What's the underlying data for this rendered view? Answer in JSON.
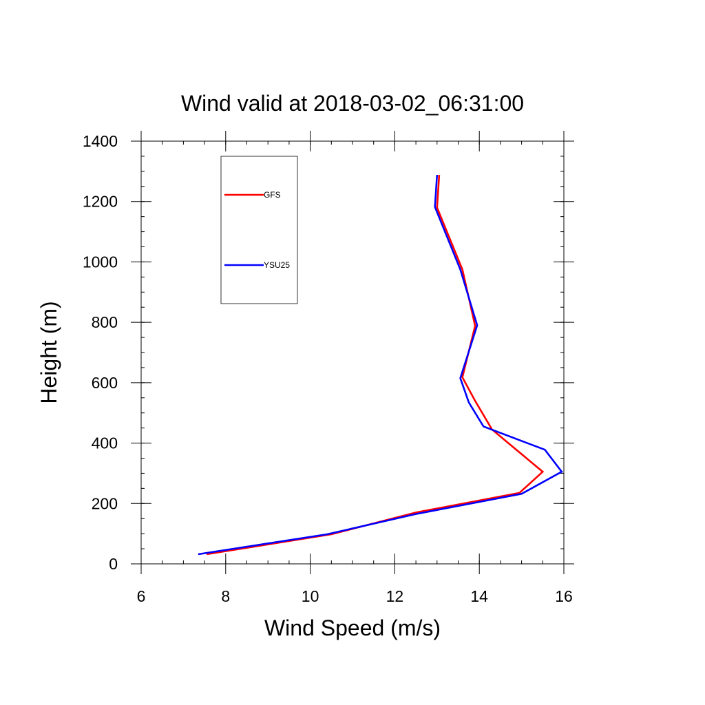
{
  "chart_data": {
    "type": "line",
    "title": "Wind valid at 2018-03-02_06:31:00",
    "xlabel": "Wind Speed (m/s)",
    "ylabel": "Height (m)",
    "xlim": [
      6,
      16
    ],
    "ylim": [
      0,
      1400
    ],
    "xticks": [
      6,
      8,
      10,
      12,
      14,
      16
    ],
    "yticks": [
      0,
      200,
      400,
      600,
      800,
      1000,
      1200,
      1400
    ],
    "grid": false,
    "legend_placement": "top-left",
    "series": [
      {
        "name": "GFS",
        "color": "#ff0000",
        "points": [
          [
            7.55,
            32
          ],
          [
            10.5,
            98
          ],
          [
            12.5,
            170
          ],
          [
            14.95,
            235
          ],
          [
            15.5,
            305
          ],
          [
            14.3,
            445
          ],
          [
            13.9,
            540
          ],
          [
            13.6,
            618
          ],
          [
            13.9,
            788
          ],
          [
            13.6,
            975
          ],
          [
            13.0,
            1180
          ],
          [
            13.05,
            1288
          ]
        ]
      },
      {
        "name": "YSU25",
        "color": "#0000ff",
        "points": [
          [
            7.35,
            32
          ],
          [
            10.4,
            98
          ],
          [
            12.5,
            165
          ],
          [
            15.0,
            232
          ],
          [
            15.95,
            305
          ],
          [
            15.55,
            378
          ],
          [
            14.1,
            455
          ],
          [
            13.75,
            535
          ],
          [
            13.55,
            615
          ],
          [
            13.95,
            790
          ],
          [
            13.55,
            975
          ],
          [
            12.95,
            1182
          ],
          [
            13.0,
            1288
          ]
        ]
      }
    ]
  }
}
